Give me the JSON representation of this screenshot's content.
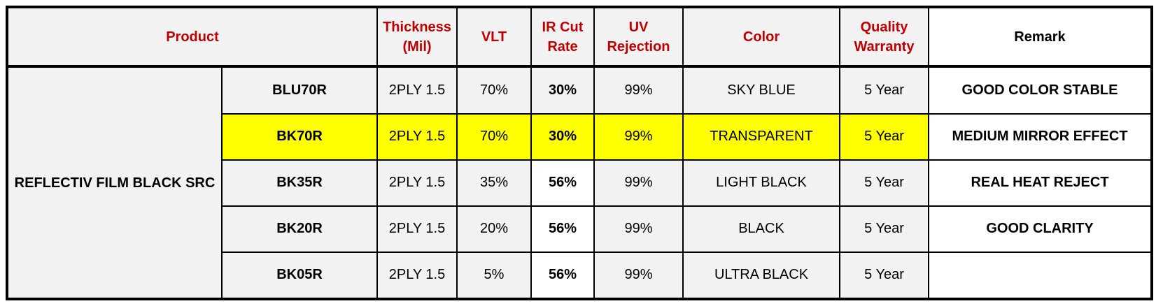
{
  "colors": {
    "header_text": "#c00000",
    "category_text": "#e60000",
    "ir_cut_text": "#a52a2a",
    "remark_text": "#c00000",
    "highlight_row": "#ffff00",
    "cell_background": "#f2f2f2"
  },
  "headers": {
    "product": "Product",
    "thickness": "Thickness (Mil)",
    "vlt": "VLT",
    "ir_cut": "IR Cut Rate",
    "uv": "UV Rejection",
    "color": "Color",
    "warranty": "Quality Warranty",
    "remark": "Remark"
  },
  "category": "REFLECTIV FILM BLACK SRC",
  "rows": [
    {
      "model": "BLU70R",
      "thickness": "2PLY 1.5",
      "vlt": "70%",
      "ir_cut": "30%",
      "uv": "99%",
      "color": "SKY BLUE",
      "warranty": "5 Year",
      "remark": "GOOD COLOR STABLE",
      "highlighted": false
    },
    {
      "model": "BK70R",
      "thickness": "2PLY 1.5",
      "vlt": "70%",
      "ir_cut": "30%",
      "uv": "99%",
      "color": "TRANSPARENT",
      "warranty": "5 Year",
      "remark": "MEDIUM MIRROR EFFECT",
      "highlighted": true
    },
    {
      "model": "BK35R",
      "thickness": "2PLY 1.5",
      "vlt": "35%",
      "ir_cut": "56%",
      "uv": "99%",
      "color": "LIGHT BLACK",
      "warranty": "5 Year",
      "remark": "REAL HEAT REJECT",
      "highlighted": false
    },
    {
      "model": "BK20R",
      "thickness": "2PLY 1.5",
      "vlt": "20%",
      "ir_cut": "56%",
      "uv": "99%",
      "color": "BLACK",
      "warranty": "5 Year",
      "remark": "GOOD CLARITY",
      "highlighted": false
    },
    {
      "model": "BK05R",
      "thickness": "2PLY 1.5",
      "vlt": "5%",
      "ir_cut": "56%",
      "uv": "99%",
      "color": "ULTRA BLACK",
      "warranty": "5 Year",
      "remark": "",
      "highlighted": false
    }
  ]
}
